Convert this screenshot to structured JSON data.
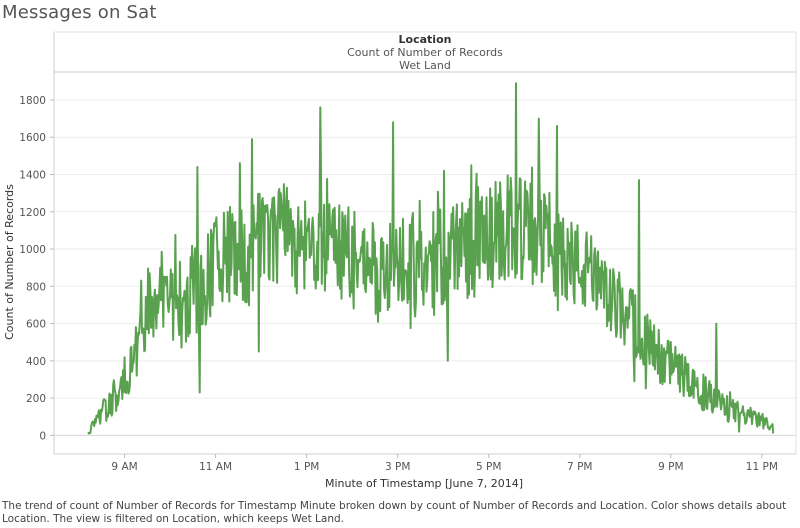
{
  "title": "Messages on Sat",
  "header": {
    "dimension": "Location",
    "measure": "Count of Number of Records",
    "filter_value": "Wet Land"
  },
  "caption": "The trend of count of Number of Records for Timestamp Minute broken down by count of Number of Records and Location.  Color shows details about Location. The view is filtered on Location, which keeps Wet Land.",
  "colors": {
    "line": "#59a14f",
    "grid": "#ececec",
    "axis": "#999999"
  },
  "chart_data": {
    "type": "line",
    "title": "Messages on Sat",
    "xlabel": "Minute of Timestamp [June 7, 2014]",
    "ylabel": "Count of Number of Records",
    "x_ticks": [
      "9 AM",
      "11 AM",
      "1 PM",
      "3 PM",
      "5 PM",
      "7 PM",
      "9 PM",
      "11 PM"
    ],
    "y_ticks": [
      0,
      200,
      400,
      600,
      800,
      1000,
      1200,
      1400,
      1600,
      1800
    ],
    "ylim": [
      -100,
      1950
    ],
    "xlim_hours": [
      7.45,
      23.75
    ],
    "series": [
      {
        "name": "Wet Land",
        "x_hours": [
          8.2,
          8.5,
          8.75,
          9.0,
          9.25,
          9.5,
          9.75,
          10.0,
          10.25,
          10.5,
          10.75,
          11.0,
          11.25,
          11.5,
          11.75,
          12.0,
          12.25,
          12.5,
          12.75,
          13.0,
          13.25,
          13.5,
          13.75,
          14.0,
          14.25,
          14.5,
          14.75,
          15.0,
          15.25,
          15.5,
          15.75,
          16.0,
          16.25,
          16.5,
          16.75,
          17.0,
          17.25,
          17.5,
          17.75,
          18.0,
          18.25,
          18.5,
          18.75,
          19.0,
          19.25,
          19.5,
          19.75,
          20.0,
          20.25,
          20.5,
          20.75,
          21.0,
          21.25,
          21.5,
          21.75,
          22.0,
          22.25,
          22.5,
          22.75,
          23.0,
          23.25
        ],
        "y": [
          20,
          120,
          200,
          300,
          460,
          700,
          780,
          760,
          700,
          780,
          820,
          900,
          960,
          1020,
          960,
          1060,
          1100,
          1080,
          1040,
          1020,
          1000,
          1020,
          980,
          980,
          940,
          900,
          880,
          860,
          880,
          900,
          940,
          960,
          1000,
          1020,
          1040,
          1060,
          1080,
          1120,
          1100,
          1080,
          1060,
          1000,
          940,
          900,
          860,
          780,
          700,
          660,
          580,
          500,
          420,
          380,
          330,
          280,
          220,
          180,
          140,
          120,
          100,
          80,
          40
        ],
        "amplitude": [
          20,
          60,
          90,
          130,
          170,
          220,
          240,
          240,
          250,
          250,
          260,
          260,
          260,
          270,
          270,
          270,
          280,
          280,
          280,
          270,
          260,
          260,
          250,
          250,
          250,
          250,
          250,
          250,
          250,
          260,
          270,
          280,
          290,
          290,
          300,
          300,
          300,
          300,
          290,
          280,
          270,
          260,
          250,
          240,
          220,
          200,
          190,
          180,
          170,
          150,
          140,
          130,
          120,
          110,
          100,
          90,
          70,
          60,
          50,
          40,
          20
        ],
        "peaks": [
          [
            9.5,
            570
          ],
          [
            10.6,
            1440
          ],
          [
            11.8,
            1590
          ],
          [
            13.3,
            1760
          ],
          [
            14.9,
            1680
          ],
          [
            17.6,
            1890
          ],
          [
            18.1,
            1700
          ],
          [
            18.5,
            1660
          ],
          [
            20.3,
            1370
          ],
          [
            22.0,
            600
          ]
        ],
        "troughs": [
          [
            10.65,
            230
          ],
          [
            11.95,
            450
          ],
          [
            16.1,
            400
          ],
          [
            20.2,
            290
          ],
          [
            22.5,
            20
          ]
        ]
      }
    ]
  }
}
